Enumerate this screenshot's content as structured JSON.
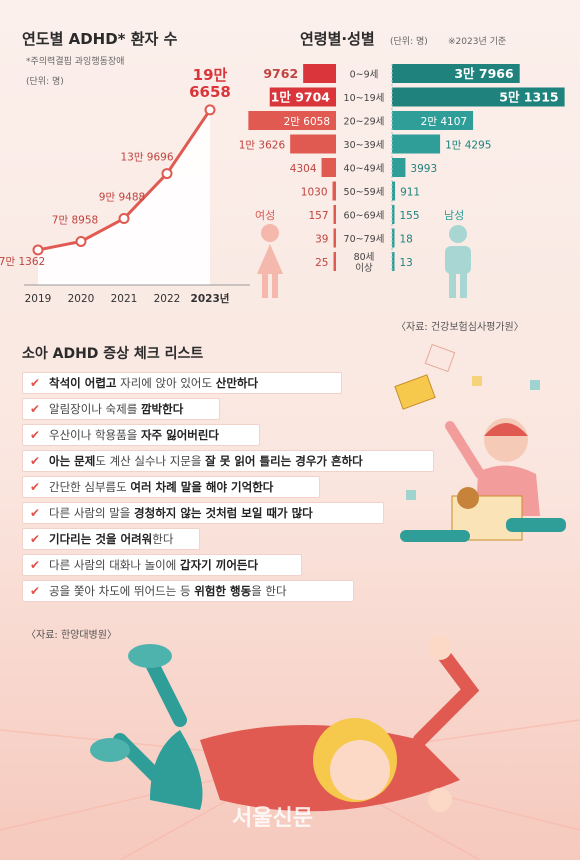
{
  "left_chart": {
    "title": "연도별 ADHD* 환자 수",
    "note": "*주의력결핍 과잉행동장애",
    "unit": "(단위: 명)"
  },
  "right_chart": {
    "title": "연령별·성별",
    "unit": "(단위: 명)",
    "note": "※2023년 기준",
    "female_label": "여성",
    "male_label": "남성",
    "source": "〈자료: 건강보험심사평가원〉"
  },
  "checklist": {
    "title": "소아 ADHD 증상 체크 리스트",
    "source": "〈자료: 한양대병원〉",
    "check_glyph": "✔",
    "items": [
      [
        {
          "t": "착석이 어렵고",
          "b": true
        },
        {
          "t": " 자리에 앉아 있어도 "
        },
        {
          "t": "산만하다",
          "b": true
        }
      ],
      [
        {
          "t": "알림장이나 숙제를 "
        },
        {
          "t": "깜박한다",
          "b": true
        }
      ],
      [
        {
          "t": "우산이나 학용품을 "
        },
        {
          "t": "자주 잃어버린다",
          "b": true
        }
      ],
      [
        {
          "t": "아는 문제",
          "b": true
        },
        {
          "t": "도 계산 실수나 지문을 "
        },
        {
          "t": "잘 못 읽어 틀리는 경우가 흔하다",
          "b": true
        }
      ],
      [
        {
          "t": "간단한 심부름도 "
        },
        {
          "t": "여러 차례 말을 해야 기억한다",
          "b": true
        }
      ],
      [
        {
          "t": "다른 사람의 말을 "
        },
        {
          "t": "경청하지 않는 것처럼 보일 때가 많다",
          "b": true
        }
      ],
      [
        {
          "t": "기다리는 것을 어려워",
          "b": true
        },
        {
          "t": "한다"
        }
      ],
      [
        {
          "t": "다른 사람의 대화나 놀이에 "
        },
        {
          "t": "갑자기 끼어든다",
          "b": true
        }
      ],
      [
        {
          "t": "공을 쫓아 차도에 뛰어드는 등 "
        },
        {
          "t": "위험한 행동",
          "b": true
        },
        {
          "t": "을 한다"
        }
      ]
    ]
  },
  "footer": {
    "logo": "서울신문"
  },
  "colors": {
    "female": "#e05a52",
    "female_dark": "#d9353a",
    "male": "#2f9e99",
    "male_dark": "#1f827d",
    "line": "#e05a52"
  },
  "chart_data": [
    {
      "type": "line",
      "x": [
        "2019",
        "2020",
        "2021",
        "2022",
        "2023년"
      ],
      "values": [
        71362,
        78958,
        99488,
        139696,
        196658
      ],
      "data_labels": [
        "7만 1362",
        "7만 8958",
        "9만 9488",
        "13만 9696",
        "19만\n6658"
      ],
      "ylim": [
        40000,
        210000
      ]
    },
    {
      "type": "bar",
      "categories": [
        "0~9세",
        "10~19세",
        "20~29세",
        "30~39세",
        "40~49세",
        "50~59세",
        "60~69세",
        "70~79세",
        "80세\n이상"
      ],
      "series": [
        {
          "name": "여성",
          "values": [
            9762,
            19704,
            26058,
            13626,
            4304,
            1030,
            157,
            39,
            25
          ],
          "labels": [
            "9762",
            "1만 9704",
            "2만 6058",
            "1만 3626",
            "4304",
            "1030",
            "157",
            "39",
            "25"
          ]
        },
        {
          "name": "남성",
          "values": [
            37966,
            51315,
            24107,
            14295,
            3993,
            911,
            155,
            18,
            13
          ],
          "labels": [
            "3만 7966",
            "5만 1315",
            "2만 4107",
            "1만 4295",
            "3993",
            "911",
            "155",
            "18",
            "13"
          ]
        }
      ],
      "xlim": [
        0,
        55000
      ]
    }
  ]
}
